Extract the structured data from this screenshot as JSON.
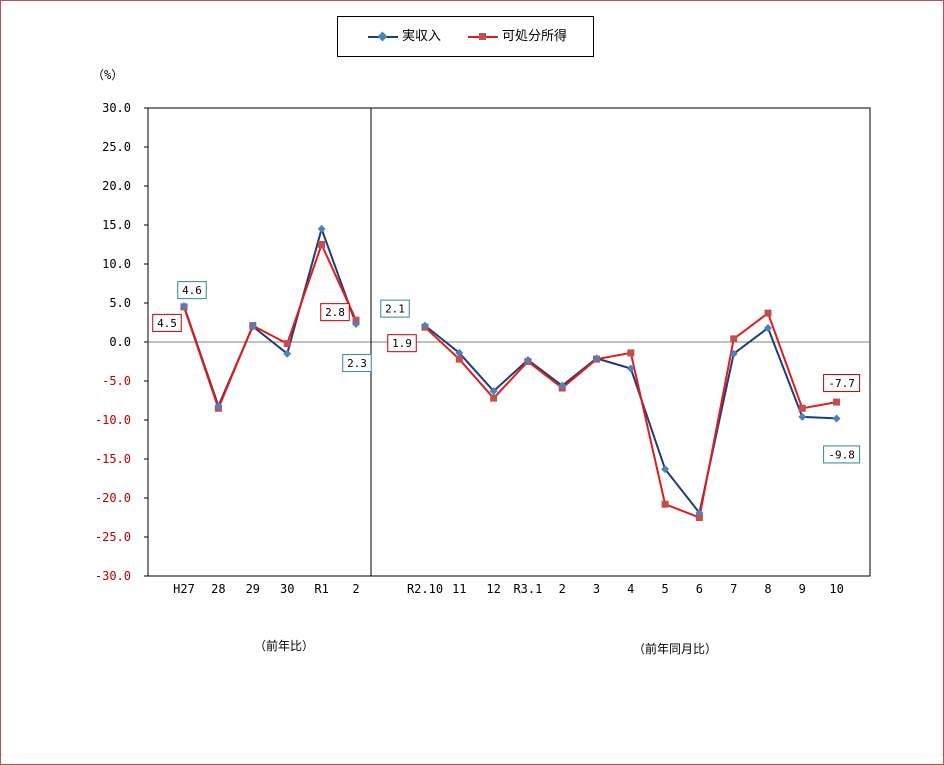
{
  "legend": {
    "series1": "実収入",
    "series2": "可処分所得"
  },
  "y_unit": "（%）",
  "section_labels": {
    "left": "（前年比）",
    "right": "（前年同月比）"
  },
  "colors": {
    "series1": "#1f3c7a",
    "series1_marker": "#4f81bd",
    "series2": "#e01c1c",
    "series2_marker": "#c0504d",
    "label_box_blue": "#31859c",
    "label_box_red": "#c00000",
    "neg_tick": "#c00000",
    "frame": "#c0504d"
  },
  "chart_data": {
    "type": "line",
    "ylim": [
      -30,
      30
    ],
    "yticks": [
      "30.0",
      "25.0",
      "20.0",
      "15.0",
      "10.0",
      "5.0",
      "0.0",
      "-5.0",
      "-10.0",
      "-15.0",
      "-20.0",
      "-25.0",
      "-30.0"
    ],
    "categories": [
      "H27",
      "28",
      "29",
      "30",
      "R1",
      "2",
      "R2.10",
      "11",
      "12",
      "R3.1",
      "2",
      "3",
      "4",
      "5",
      "6",
      "7",
      "8",
      "9",
      "10"
    ],
    "series": [
      {
        "name": "実収入",
        "values": [
          4.6,
          -8.2,
          2.0,
          -1.5,
          14.5,
          2.3,
          2.1,
          -1.4,
          -6.3,
          -2.3,
          -5.6,
          -2.1,
          -3.4,
          -16.3,
          -21.9,
          -1.5,
          1.8,
          -9.6,
          -9.8
        ]
      },
      {
        "name": "可処分所得",
        "values": [
          4.5,
          -8.5,
          2.1,
          -0.2,
          12.5,
          2.8,
          1.9,
          -2.2,
          -7.2,
          -2.5,
          -5.9,
          -2.2,
          -1.4,
          -20.8,
          -22.5,
          0.4,
          3.7,
          -8.5,
          -7.7
        ]
      }
    ],
    "data_labels": [
      {
        "text": "4.6",
        "series": 0,
        "index": 0,
        "color": "blue"
      },
      {
        "text": "4.5",
        "series": 1,
        "index": 0,
        "color": "red"
      },
      {
        "text": "2.8",
        "series": 1,
        "index": 5,
        "color": "red"
      },
      {
        "text": "2.3",
        "series": 0,
        "index": 5,
        "color": "blue"
      },
      {
        "text": "2.1",
        "series": 0,
        "index": 6,
        "color": "blue"
      },
      {
        "text": "1.9",
        "series": 1,
        "index": 6,
        "color": "red"
      },
      {
        "text": "-7.7",
        "series": 1,
        "index": 18,
        "color": "red"
      },
      {
        "text": "-9.8",
        "series": 0,
        "index": 18,
        "color": "blue"
      }
    ]
  }
}
